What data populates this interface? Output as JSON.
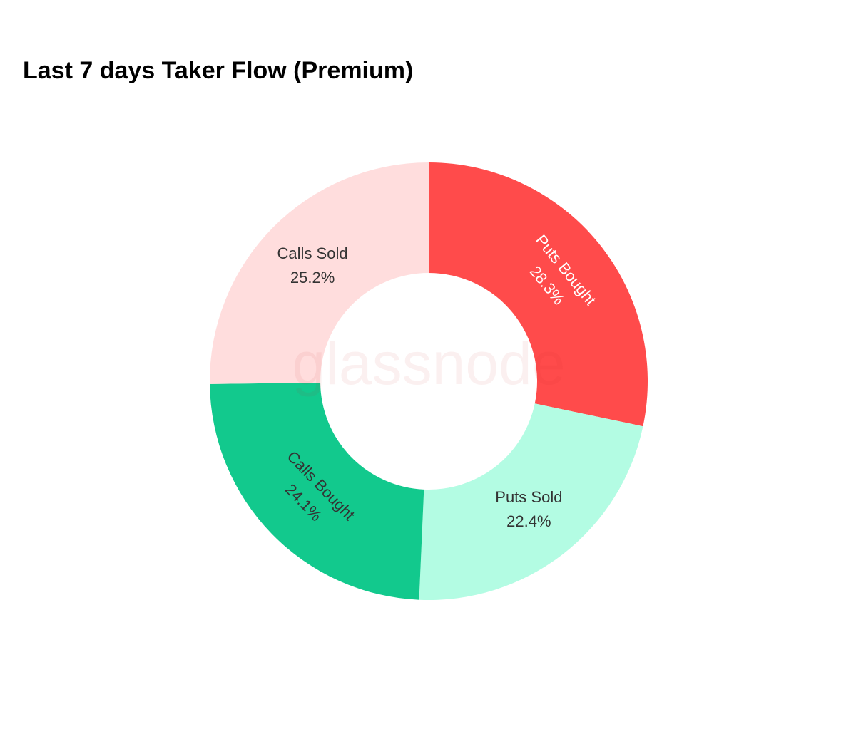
{
  "chart_data": {
    "type": "donut",
    "title": "Last 7 days Taker Flow (Premium)",
    "watermark": "glassnode",
    "categories": [
      "Puts Bought",
      "Puts Sold",
      "Calls Bought",
      "Calls Sold"
    ],
    "values": [
      28.3,
      22.4,
      24.1,
      25.2
    ],
    "value_labels": [
      "28.3%",
      "22.4%",
      "24.1%",
      "25.2%"
    ],
    "colors": [
      "#ff4b4b",
      "#b3fce3",
      "#12c98d",
      "#ffdddd"
    ]
  }
}
